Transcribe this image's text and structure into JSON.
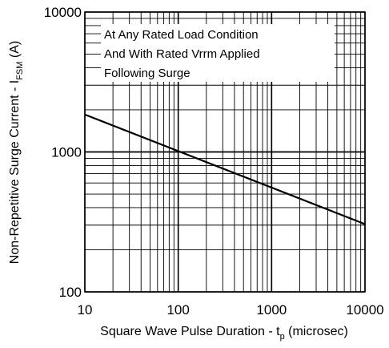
{
  "chart_data": {
    "type": "line",
    "x_scale": "log",
    "y_scale": "log",
    "xlim": [
      10,
      10000
    ],
    "ylim": [
      100,
      10000
    ],
    "x_ticks": [
      "10",
      "100",
      "1000",
      "10000"
    ],
    "y_ticks": [
      "100",
      "1000",
      "10000"
    ],
    "xlabel": {
      "main": "Square Wave Pulse Duration - t",
      "sub": "p",
      "suffix": " (microsec)"
    },
    "ylabel": {
      "main": "Non-Repetitive Surge Current - I",
      "sub": "FSM",
      "suffix": " (A)"
    },
    "annotation_lines": [
      "At Any Rated Load Condition",
      "And With Rated Vrrm Applied",
      "Following Surge"
    ],
    "grid": true,
    "series": [
      {
        "x": [
          10,
          10000
        ],
        "y": [
          1850,
          305
        ]
      }
    ]
  }
}
